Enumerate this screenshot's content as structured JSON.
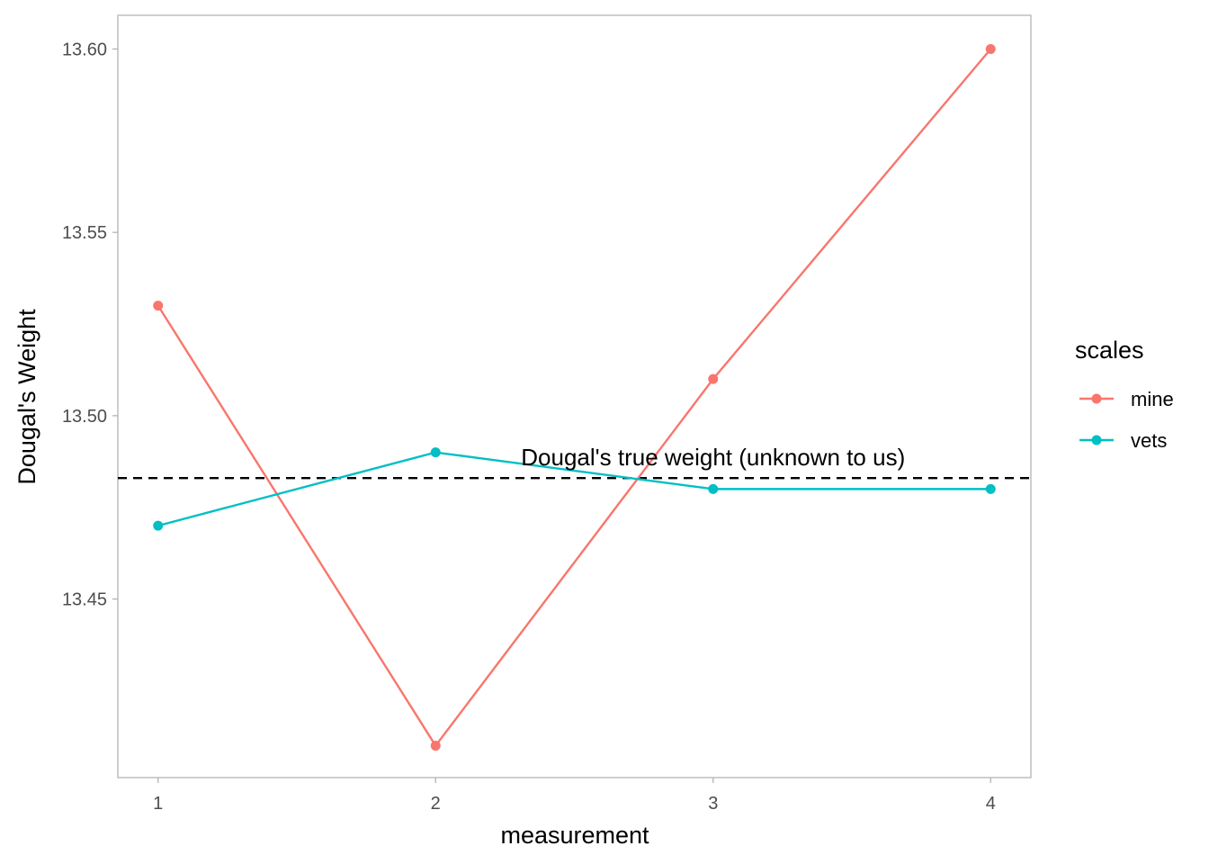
{
  "chart_data": {
    "type": "line",
    "title": "",
    "xlabel": "measurement",
    "ylabel": "Dougal's Weight",
    "x": [
      1,
      2,
      3,
      4
    ],
    "x_ticks": [
      "1",
      "2",
      "3",
      "4"
    ],
    "y_ticks": [
      "13.45",
      "13.50",
      "13.55",
      "13.60"
    ],
    "xlim": [
      0.855,
      4.145
    ],
    "ylim": [
      13.4013,
      13.6092
    ],
    "grid": false,
    "legend": {
      "title": "scales",
      "placement": "right"
    },
    "series": [
      {
        "name": "mine",
        "values": [
          13.53,
          13.41,
          13.51,
          13.6
        ],
        "color": "#F8766D"
      },
      {
        "name": "vets",
        "values": [
          13.47,
          13.49,
          13.48,
          13.48
        ],
        "color": "#00BFC4"
      }
    ],
    "reference_line": {
      "value": 13.483,
      "style": "dashed",
      "color": "#000000",
      "label": "Dougal's true weight (unknown to us)",
      "label_x": 3
    }
  }
}
